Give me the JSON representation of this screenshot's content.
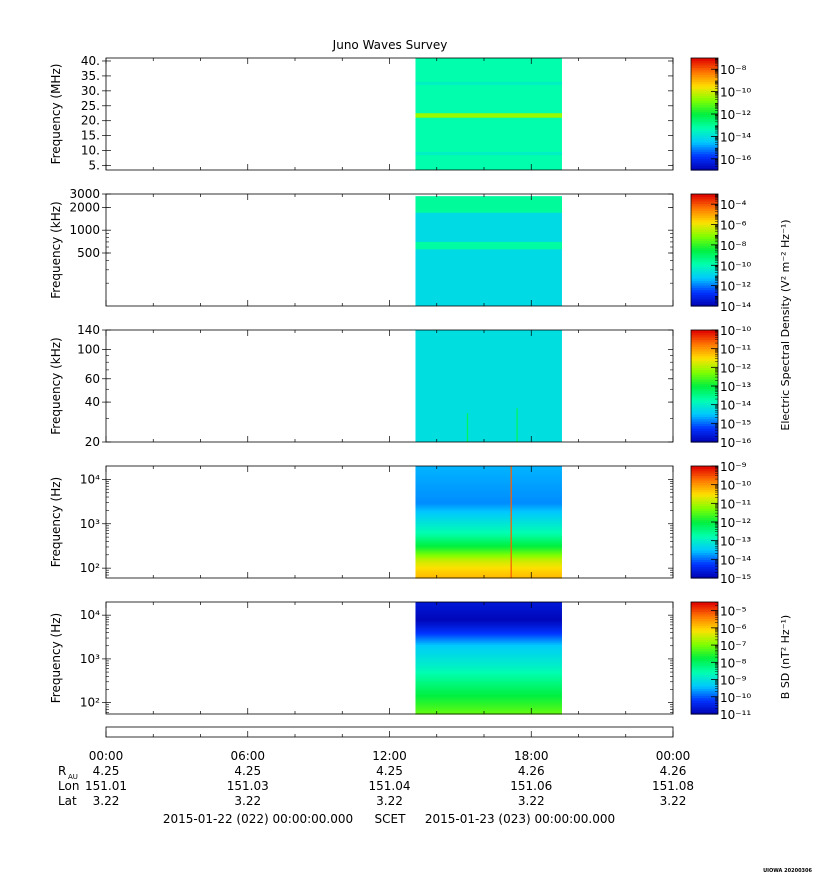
{
  "title": "Juno Waves Survey",
  "footer": {
    "time_ticks": [
      "00:00",
      "06:00",
      "12:00",
      "18:00",
      "00:00"
    ],
    "ephemeris": [
      {
        "label": "R",
        "sub": "AU",
        "values": [
          "4.25",
          "4.25",
          "4.25",
          "4.26",
          "4.26"
        ]
      },
      {
        "label": "Lon",
        "sub": "",
        "values": [
          "151.01",
          "151.03",
          "151.04",
          "151.06",
          "151.08"
        ]
      },
      {
        "label": "Lat",
        "sub": "",
        "values": [
          "3.22",
          "3.22",
          "3.22",
          "3.22",
          "3.22"
        ]
      }
    ],
    "start": "2015-01-22 (022) 00:00:00.000",
    "scet": "SCET",
    "end": "2015-01-23 (023) 00:00:00.000",
    "stamp": "UIOWA 20200306"
  },
  "colors": {
    "scale": [
      "#0000b0",
      "#0033ff",
      "#00c8ff",
      "#00ffb0",
      "#00f040",
      "#80ff00",
      "#ffe000",
      "#ff7800",
      "#e00000"
    ]
  },
  "shared_colorbar_label": "Electric Spectral Density (V² m⁻² Hz⁻¹)",
  "chart_data": [
    {
      "type": "heatmap",
      "ylabel": "Frequency (MHz)",
      "yscale": "linear",
      "ylim": [
        3.5,
        41
      ],
      "yticks": [
        "40.",
        "35.",
        "30.",
        "25.",
        "20.",
        "15.",
        "10.",
        "5."
      ],
      "ytick_values": [
        40,
        35,
        30,
        25,
        20,
        15,
        10,
        5
      ],
      "data_window_hours": [
        13.1,
        19.3
      ],
      "colorbar": {
        "ticks": [
          "10⁻⁸",
          "10⁻¹⁰",
          "10⁻¹²",
          "10⁻¹⁴",
          "10⁻¹⁶"
        ],
        "exponents": [
          -8,
          -10,
          -12,
          -14,
          -16
        ],
        "range": [
          -17,
          -7
        ]
      },
      "bands": [
        {
          "from": 3.5,
          "to": 41,
          "level": -13.2
        },
        {
          "from": 21,
          "to": 22.5,
          "level": -10.5
        },
        {
          "from": 8.5,
          "to": 9.5,
          "level": -13.6
        },
        {
          "from": 32,
          "to": 33,
          "level": -13.6
        }
      ]
    },
    {
      "type": "heatmap",
      "ylabel": "Frequency (kHz)",
      "yscale": "log",
      "ylim": [
        100,
        3000
      ],
      "yticks": [
        "3000",
        "2000",
        "1000",
        "500"
      ],
      "ytick_values": [
        3000,
        2000,
        1000,
        500
      ],
      "data_window_hours": [
        13.1,
        19.3
      ],
      "colorbar": {
        "ticks": [
          "10⁻⁴",
          "10⁻⁶",
          "10⁻⁸",
          "10⁻¹⁰",
          "10⁻¹²",
          "10⁻¹⁴"
        ],
        "exponents": [
          -4,
          -6,
          -8,
          -10,
          -12,
          -14
        ],
        "range": [
          -14,
          -3
        ]
      },
      "bands": [
        {
          "from": 100,
          "to": 2800,
          "level": -10.8
        },
        {
          "from": 1700,
          "to": 2800,
          "level": -9.6
        },
        {
          "from": 560,
          "to": 700,
          "level": -9.7
        }
      ]
    },
    {
      "type": "heatmap",
      "ylabel": "Frequency (kHz)",
      "yscale": "log",
      "ylim": [
        20,
        140
      ],
      "yticks": [
        "140",
        "100",
        "60",
        "40",
        "20"
      ],
      "ytick_values": [
        140,
        100,
        60,
        40,
        20
      ],
      "data_window_hours": [
        13.1,
        19.3
      ],
      "colorbar": {
        "ticks": [
          "10⁻¹⁰",
          "10⁻¹¹",
          "10⁻¹²",
          "10⁻¹³",
          "10⁻¹⁴",
          "10⁻¹⁵",
          "10⁻¹⁶"
        ],
        "exponents": [
          -10,
          -11,
          -12,
          -13,
          -14,
          -15,
          -16
        ],
        "range": [
          -16,
          -10
        ]
      },
      "bands": [
        {
          "from": 20,
          "to": 140,
          "level": -14.2
        }
      ],
      "spikes": [
        {
          "hour": 15.3,
          "from": 20,
          "to": 33,
          "level": -13.2
        },
        {
          "hour": 17.4,
          "from": 20,
          "to": 36,
          "level": -13.2
        }
      ]
    },
    {
      "type": "heatmap",
      "ylabel": "Frequency (Hz)",
      "yscale": "log",
      "ylim": [
        60,
        20000
      ],
      "yticks": [
        "10⁴",
        "10³",
        "10²"
      ],
      "ytick_values": [
        10000,
        1000,
        100
      ],
      "data_window_hours": [
        13.1,
        19.3
      ],
      "colorbar": {
        "ticks": [
          "10⁻⁹",
          "10⁻¹⁰",
          "10⁻¹¹",
          "10⁻¹²",
          "10⁻¹³",
          "10⁻¹⁴",
          "10⁻¹⁵"
        ],
        "exponents": [
          -9,
          -10,
          -11,
          -12,
          -13,
          -14,
          -15
        ],
        "range": [
          -15,
          -9
        ]
      },
      "profile": [
        [
          20000,
          -13.6
        ],
        [
          3000,
          -13.8
        ],
        [
          1200,
          -13.2
        ],
        [
          600,
          -12.7
        ],
        [
          300,
          -11.9
        ],
        [
          150,
          -10.8
        ],
        [
          90,
          -10.4
        ],
        [
          60,
          -10.2
        ]
      ],
      "spikes": [
        {
          "hour": 17.15,
          "from": 60,
          "to": 20000,
          "level": -9.6
        }
      ]
    },
    {
      "type": "heatmap",
      "ylabel": "Frequency (Hz)",
      "yscale": "log",
      "ylim": [
        55,
        20000
      ],
      "yticks": [
        "10⁴",
        "10³",
        "10²"
      ],
      "ytick_values": [
        10000,
        1000,
        100
      ],
      "data_window_hours": [
        13.1,
        19.3
      ],
      "colorbar": {
        "label": "B SD (nT² Hz⁻¹)",
        "ticks": [
          "10⁻⁵",
          "10⁻⁶",
          "10⁻⁷",
          "10⁻⁸",
          "10⁻⁹",
          "10⁻¹⁰",
          "10⁻¹¹"
        ],
        "exponents": [
          -5,
          -6,
          -7,
          -8,
          -9,
          -10,
          -11
        ],
        "range": [
          -11,
          -4.5
        ]
      },
      "profile": [
        [
          20000,
          -10.6
        ],
        [
          8000,
          -10.9
        ],
        [
          4000,
          -10.2
        ],
        [
          2000,
          -9.3
        ],
        [
          700,
          -8.8
        ],
        [
          250,
          -8.1
        ],
        [
          100,
          -7.5
        ],
        [
          55,
          -7.1
        ]
      ]
    }
  ]
}
